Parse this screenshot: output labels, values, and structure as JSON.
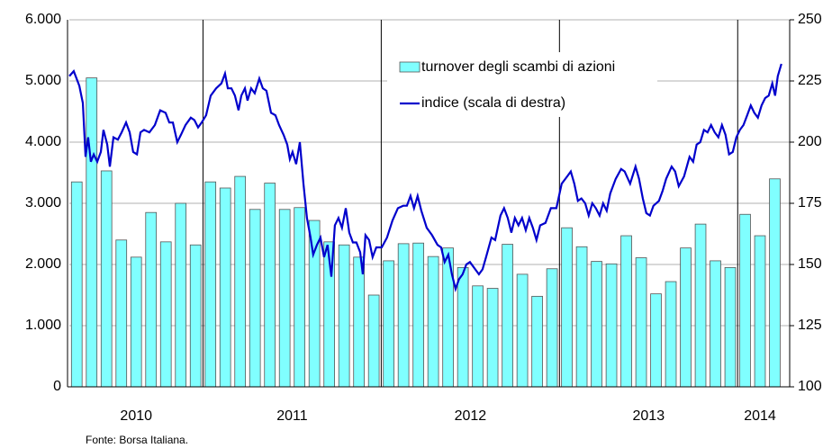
{
  "chart_data": {
    "type": "bar_line",
    "source": "Fonte: Borsa Italiana.",
    "groups": [
      {
        "label": "2010",
        "count": 9
      },
      {
        "label": "2011",
        "count": 12
      },
      {
        "label": "2012",
        "count": 12
      },
      {
        "label": "2013",
        "count": 12
      },
      {
        "label": "2014",
        "count": 3
      }
    ],
    "ylim": [
      0,
      6000
    ],
    "yticks": [
      {
        "value": 0,
        "label": "0"
      },
      {
        "value": 1000,
        "label": "1.000"
      },
      {
        "value": 2000,
        "label": "2.000"
      },
      {
        "value": 3000,
        "label": "3.000"
      },
      {
        "value": 4000,
        "label": "4.000"
      },
      {
        "value": 5000,
        "label": "5.000"
      },
      {
        "value": 6000,
        "label": "6.000"
      }
    ],
    "y2lim": [
      100,
      250
    ],
    "y2ticks": [
      100,
      125,
      150,
      175,
      200,
      225,
      250
    ],
    "xlim": [
      0,
      48.5
    ],
    "grid": true,
    "bars": {
      "name": "turnover degli scambi di azioni",
      "color": "#80ffff",
      "values": [
        3350,
        5050,
        3530,
        2400,
        2120,
        2850,
        2370,
        3000,
        2320,
        3350,
        3250,
        3440,
        2900,
        3330,
        2900,
        2930,
        2720,
        2370,
        2320,
        2120,
        1500,
        2060,
        2340,
        2350,
        2130,
        2270,
        1950,
        1650,
        1610,
        2330,
        1840,
        1480,
        1930,
        2600,
        2290,
        2050,
        2010,
        2470,
        2110,
        1520,
        1720,
        2270,
        2660,
        2060,
        1950,
        2820,
        2470,
        3400
      ]
    },
    "line": {
      "name": "indice (scala di destra)",
      "color": "#0000cc",
      "axis": "y2",
      "x": [
        0,
        0.3,
        0.67,
        0.91,
        1.09,
        1.27,
        1.45,
        1.64,
        1.88,
        2.12,
        2.3,
        2.55,
        2.73,
        2.97,
        3.27,
        3.52,
        3.82,
        4.06,
        4.3,
        4.55,
        4.79,
        5.03,
        5.39,
        5.76,
        6.12,
        6.48,
        6.73,
        6.97,
        7.27,
        7.52,
        7.82,
        8.18,
        8.42,
        8.67,
        8.91,
        9.21,
        9.52,
        9.88,
        10.24,
        10.48,
        10.67,
        10.91,
        11.15,
        11.39,
        11.58,
        11.82,
        12,
        12.24,
        12.48,
        12.79,
        13.03,
        13.27,
        13.58,
        13.88,
        14.12,
        14.42,
        14.67,
        14.85,
        15.03,
        15.27,
        15.52,
        15.76,
        16,
        16.24,
        16.42,
        16.67,
        16.91,
        17.15,
        17.39,
        17.64,
        17.88,
        18.12,
        18.36,
        18.61,
        18.85,
        19.09,
        19.33,
        19.58,
        19.76,
        19.94,
        20.18,
        20.42,
        20.67,
        21.03,
        21.39,
        21.76,
        22.12,
        22.48,
        22.73,
        22.97,
        23.21,
        23.45,
        23.7,
        24.06,
        24.42,
        24.79,
        25.03,
        25.27,
        25.52,
        25.76,
        26,
        26.24,
        26.48,
        26.73,
        26.97,
        27.33,
        27.58,
        27.82,
        28.06,
        28.42,
        28.67,
        29.03,
        29.27,
        29.52,
        29.76,
        30,
        30.24,
        30.48,
        30.73,
        30.97,
        31.21,
        31.45,
        31.7,
        32.06,
        32.42,
        32.79,
        33.15,
        33.52,
        33.76,
        34,
        34.24,
        34.48,
        34.73,
        34.97,
        35.21,
        35.45,
        35.7,
        35.94,
        36.18,
        36.42,
        36.79,
        37.15,
        37.39,
        37.76,
        38.12,
        38.36,
        38.61,
        38.85,
        39.09,
        39.33,
        39.7,
        39.94,
        40.18,
        40.55,
        40.79,
        41.03,
        41.39,
        41.76,
        42,
        42.24,
        42.48,
        42.73,
        42.97,
        43.21,
        43.45,
        43.7,
        43.94,
        44.18,
        44.42,
        44.67,
        44.91,
        45.15,
        45.39,
        45.64,
        45.88,
        46.12,
        46.36,
        46.61,
        46.85,
        47.09,
        47.33,
        47.52,
        47.7,
        47.94
      ],
      "values": [
        227,
        229,
        223,
        216,
        194,
        202,
        192,
        195,
        192,
        196,
        205,
        199,
        190,
        202,
        201,
        204,
        208,
        204,
        196,
        195,
        204,
        205,
        204,
        207,
        213,
        212,
        208,
        208,
        200,
        203,
        207,
        210,
        209,
        206,
        208,
        211,
        219,
        222,
        224,
        228,
        222,
        222,
        219,
        213,
        219,
        222,
        217,
        222,
        220,
        226,
        222,
        221,
        212,
        211,
        207,
        203,
        199,
        193,
        196,
        191,
        200,
        183,
        169,
        161,
        154,
        158,
        161,
        153,
        158,
        145,
        166,
        169,
        165,
        173,
        163,
        159,
        159,
        155,
        146,
        162,
        160,
        153,
        157,
        157,
        161,
        168,
        173,
        174,
        174,
        178,
        173,
        178,
        172,
        165,
        162,
        158,
        157,
        151,
        154,
        146,
        140,
        144,
        146,
        150,
        151,
        148,
        146,
        148,
        153,
        161,
        160,
        170,
        173,
        169,
        163,
        169,
        166,
        169,
        164,
        169,
        165,
        160,
        166,
        167,
        173,
        173,
        183,
        186,
        188,
        183,
        176,
        177,
        175,
        170,
        175,
        173,
        170,
        175,
        172,
        179,
        185,
        189,
        188,
        183,
        190,
        185,
        177,
        171,
        170,
        174,
        176,
        180,
        185,
        190,
        188,
        182,
        186,
        194,
        192,
        199,
        200,
        205,
        204,
        207,
        204,
        202,
        207,
        203,
        195,
        196,
        202,
        205,
        207,
        211,
        215,
        212,
        210,
        215,
        218,
        219,
        224,
        219,
        227,
        232
      ]
    }
  }
}
